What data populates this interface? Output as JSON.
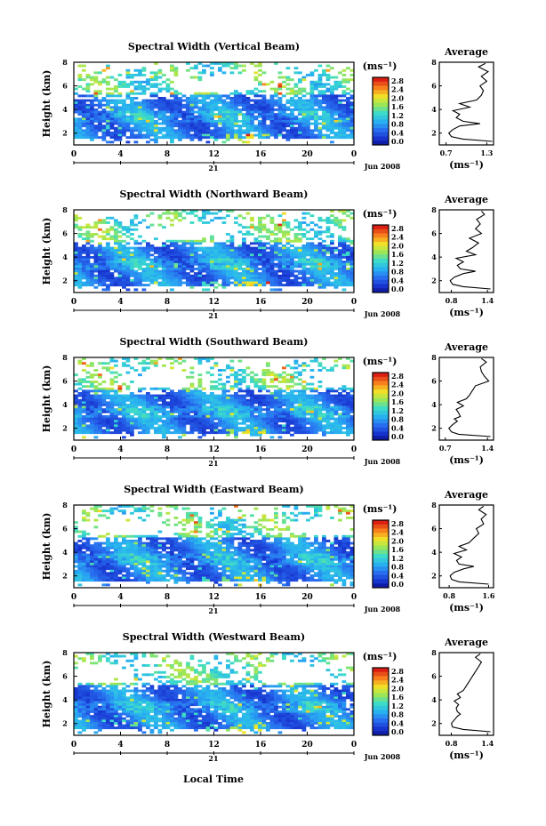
{
  "figure": {
    "xlabel": "Local Time",
    "xticks": [
      "0",
      "4",
      "8",
      "12",
      "16",
      "20",
      "0"
    ],
    "date_day": "21",
    "date_label": "Jun 2008",
    "ylabel": "Height (km)",
    "yticks": [
      "2",
      "4",
      "6",
      "8"
    ],
    "cbar_unit": "(ms⁻¹)",
    "profile_title": "Average",
    "profile_unit": "(ms⁻¹)"
  },
  "chart_data": [
    {
      "type": "heatmap",
      "title": "Spectral Width (Vertical Beam)",
      "xlim": [
        0,
        24
      ],
      "ylim": [
        1,
        8
      ],
      "colorbar": {
        "ticks": [
          "0.0",
          "0.4",
          "0.8",
          "1.2",
          "1.6",
          "2.0",
          "2.4",
          "2.8"
        ]
      },
      "profile": {
        "title": "Average",
        "xticks": [
          "0.7",
          "1.3"
        ],
        "xlim": [
          0.6,
          1.4
        ],
        "height_km": [
          1.3,
          1.5,
          1.7,
          2.0,
          2.3,
          2.6,
          2.8,
          3.0,
          3.3,
          3.6,
          3.9,
          4.2,
          4.5,
          4.8,
          5.2,
          5.6,
          6.0,
          6.4,
          6.8,
          7.2,
          7.6,
          7.9
        ],
        "width_ms": [
          1.38,
          0.95,
          0.78,
          0.74,
          0.8,
          0.9,
          1.2,
          0.95,
          0.85,
          0.9,
          0.8,
          1.05,
          0.9,
          1.15,
          1.22,
          1.25,
          1.2,
          1.3,
          1.22,
          1.32,
          1.18,
          1.28
        ]
      }
    },
    {
      "type": "heatmap",
      "title": "Spectral Width (Northward Beam)",
      "xlim": [
        0,
        24
      ],
      "ylim": [
        1,
        8
      ],
      "colorbar": {
        "ticks": [
          "0.0",
          "0.4",
          "0.8",
          "1.2",
          "1.6",
          "2.0",
          "2.4",
          "2.8"
        ]
      },
      "profile": {
        "title": "Average",
        "xticks": [
          "0.8",
          "1.4"
        ],
        "xlim": [
          0.6,
          1.5
        ],
        "height_km": [
          1.3,
          1.5,
          1.7,
          2.0,
          2.3,
          2.6,
          2.8,
          3.0,
          3.3,
          3.6,
          3.9,
          4.2,
          4.5,
          4.8,
          5.2,
          5.6,
          6.0,
          6.4,
          6.8,
          7.2,
          7.6,
          7.9
        ],
        "width_ms": [
          1.45,
          1.0,
          0.82,
          0.78,
          0.85,
          1.0,
          1.2,
          0.95,
          0.9,
          1.0,
          0.88,
          1.2,
          1.05,
          1.15,
          1.25,
          1.1,
          1.3,
          1.2,
          1.28,
          1.22,
          1.35,
          1.3
        ]
      }
    },
    {
      "type": "heatmap",
      "title": "Spectral Width (Southward Beam)",
      "xlim": [
        0,
        24
      ],
      "ylim": [
        1,
        8
      ],
      "colorbar": {
        "ticks": [
          "0.0",
          "0.4",
          "0.8",
          "1.2",
          "1.6",
          "2.0",
          "2.4",
          "2.8"
        ]
      },
      "profile": {
        "title": "Average",
        "xticks": [
          "0.7",
          "1.4"
        ],
        "xlim": [
          0.6,
          1.5
        ],
        "height_km": [
          1.3,
          1.5,
          1.7,
          2.0,
          2.3,
          2.6,
          2.8,
          3.0,
          3.3,
          3.6,
          3.9,
          4.2,
          4.5,
          4.8,
          5.2,
          5.6,
          6.0,
          6.4,
          6.8,
          7.2,
          7.6,
          7.9
        ],
        "width_ms": [
          1.45,
          0.92,
          0.8,
          0.76,
          0.82,
          0.9,
          0.85,
          0.95,
          0.92,
          0.88,
          1.0,
          0.9,
          1.05,
          1.1,
          1.15,
          1.2,
          1.42,
          1.35,
          1.3,
          1.28,
          1.38,
          1.3
        ]
      }
    },
    {
      "type": "heatmap",
      "title": "Spectral Width (Eastward Beam)",
      "xlim": [
        0,
        24
      ],
      "ylim": [
        1,
        8
      ],
      "colorbar": {
        "ticks": [
          "0.0",
          "0.4",
          "0.8",
          "1.2",
          "1.6",
          "2.0",
          "2.4",
          "2.8"
        ]
      },
      "profile": {
        "title": "Average",
        "xticks": [
          "0.8",
          "1.6"
        ],
        "xlim": [
          0.6,
          1.7
        ],
        "height_km": [
          1.3,
          1.5,
          1.7,
          2.0,
          2.3,
          2.6,
          2.8,
          3.0,
          3.3,
          3.6,
          3.9,
          4.2,
          4.5,
          4.8,
          5.2,
          5.6,
          6.0,
          6.4,
          6.8,
          7.2,
          7.6,
          7.9
        ],
        "width_ms": [
          1.6,
          1.0,
          0.85,
          0.82,
          0.9,
          1.1,
          1.3,
          1.0,
          0.95,
          1.05,
          0.9,
          1.15,
          1.0,
          1.2,
          1.3,
          1.4,
          1.35,
          1.5,
          1.45,
          1.55,
          1.4,
          1.5
        ]
      }
    },
    {
      "type": "heatmap",
      "title": "Spectral Width (Westward Beam)",
      "xlim": [
        0,
        24
      ],
      "ylim": [
        1,
        8
      ],
      "colorbar": {
        "ticks": [
          "0.0",
          "0.4",
          "0.8",
          "1.2",
          "1.6",
          "2.0",
          "2.4",
          "2.8"
        ]
      },
      "profile": {
        "title": "Average",
        "xticks": [
          "0.8",
          "1.4"
        ],
        "xlim": [
          0.6,
          1.5
        ],
        "height_km": [
          1.3,
          1.5,
          1.7,
          2.0,
          2.3,
          2.6,
          2.8,
          3.0,
          3.3,
          3.6,
          3.9,
          4.2,
          4.5,
          4.8,
          5.2,
          5.6,
          6.0,
          6.4,
          6.8,
          7.2,
          7.6,
          7.9
        ],
        "width_ms": [
          1.45,
          1.0,
          0.82,
          0.8,
          0.85,
          0.9,
          0.95,
          0.9,
          0.88,
          0.92,
          0.85,
          0.95,
          0.9,
          1.0,
          1.05,
          1.1,
          1.15,
          1.2,
          1.25,
          1.3,
          1.2,
          1.28
        ]
      }
    }
  ]
}
